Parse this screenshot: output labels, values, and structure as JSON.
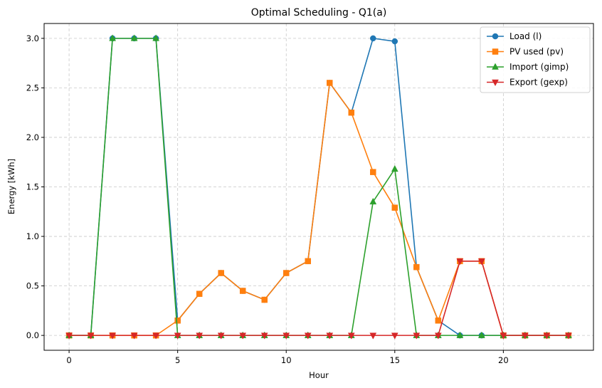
{
  "chart_data": {
    "type": "line",
    "title": "Optimal Scheduling - Q1(a)",
    "xlabel": "Hour",
    "ylabel": "Energy [kWh]",
    "xlim": [
      -1.15,
      24.15
    ],
    "ylim": [
      -0.15,
      3.15
    ],
    "xticks": [
      0,
      5,
      10,
      15,
      20
    ],
    "xtick_labels": [
      "0",
      "5",
      "10",
      "15",
      "20"
    ],
    "yticks": [
      0.0,
      0.5,
      1.0,
      1.5,
      2.0,
      2.5,
      3.0
    ],
    "ytick_labels": [
      "0.0",
      "0.5",
      "1.0",
      "1.5",
      "2.0",
      "2.5",
      "3.0"
    ],
    "grid": true,
    "legend_position": "top-right",
    "x": [
      0,
      1,
      2,
      3,
      4,
      5,
      6,
      7,
      8,
      9,
      10,
      11,
      12,
      13,
      14,
      15,
      16,
      17,
      18,
      19,
      20,
      21,
      22,
      23
    ],
    "series": [
      {
        "name": "Load (l)",
        "color": "#1f77b4",
        "marker": "circle",
        "values": [
          0,
          0,
          3.0,
          3.0,
          3.0,
          0.15,
          0.42,
          0.63,
          0.45,
          0.36,
          0.63,
          0.75,
          2.55,
          2.25,
          3.0,
          2.97,
          0.69,
          0.15,
          0,
          0,
          0,
          0,
          0,
          0
        ]
      },
      {
        "name": "PV used (pv)",
        "color": "#ff7f0e",
        "marker": "square",
        "values": [
          0,
          0,
          0,
          0,
          0,
          0.15,
          0.42,
          0.63,
          0.45,
          0.36,
          0.63,
          0.75,
          2.55,
          2.25,
          1.65,
          1.29,
          0.69,
          0.15,
          0.75,
          0.75,
          0,
          0,
          0,
          0
        ]
      },
      {
        "name": "Import (gimp)",
        "color": "#2ca02c",
        "marker": "triangle-up",
        "values": [
          0,
          0,
          3.0,
          3.0,
          3.0,
          0,
          0,
          0,
          0,
          0,
          0,
          0,
          0,
          0,
          1.35,
          1.68,
          0,
          0,
          0,
          0,
          0,
          0,
          0,
          0
        ]
      },
      {
        "name": "Export (gexp)",
        "color": "#d62728",
        "marker": "triangle-down",
        "values": [
          0,
          0,
          0,
          0,
          0,
          0,
          0,
          0,
          0,
          0,
          0,
          0,
          0,
          0,
          0,
          0,
          0,
          0,
          0.75,
          0.75,
          0,
          0,
          0,
          0
        ]
      }
    ]
  }
}
